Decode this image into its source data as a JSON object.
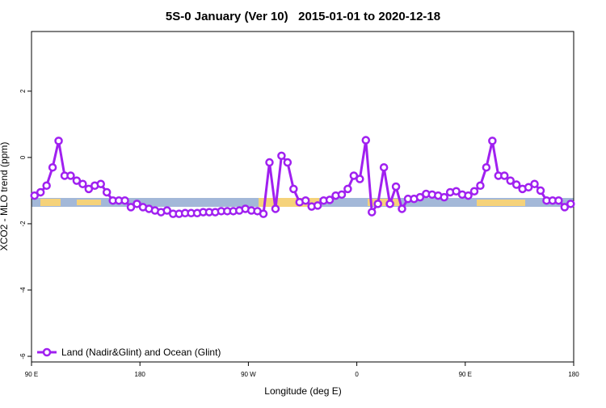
{
  "chart_data": {
    "type": "line",
    "title": "5S-0 January (Ver 10)   2015-01-01 to 2020-12-18",
    "xlabel": "Longitude (deg E)",
    "ylabel": "XCO2 - MLO trend (ppm)",
    "xlim": [
      90,
      540
    ],
    "ylim": [
      -6.17,
      3.8
    ],
    "xticks": [
      {
        "value": 90,
        "label": "90 E"
      },
      180,
      {
        "value": 270,
        "label": "90 W"
      },
      {
        "value": 360,
        "label": "0"
      },
      {
        "value": 450,
        "label": "90 E"
      },
      {
        "value": 540,
        "label": "180"
      }
    ],
    "yticks": [
      2,
      0,
      -2,
      -4,
      -6
    ],
    "legend": "bottom-left",
    "x": [
      92.5,
      97.5,
      102.5,
      107.5,
      112.5,
      117.5,
      122.5,
      127.5,
      132.5,
      137.5,
      142.5,
      147.5,
      152.5,
      157.5,
      162.5,
      167.5,
      172.5,
      177.5,
      182.5,
      187.5,
      192.5,
      197.5,
      202.5,
      207.5,
      212.5,
      217.5,
      222.5,
      227.5,
      232.5,
      237.5,
      242.5,
      247.5,
      252.5,
      257.5,
      262.5,
      267.5,
      272.5,
      277.5,
      282.5,
      287.5,
      292.5,
      297.5,
      302.5,
      307.5,
      312.5,
      317.5,
      322.5,
      327.5,
      332.5,
      337.5,
      342.5,
      347.5,
      352.5,
      357.5,
      362.5,
      367.5,
      372.5,
      377.5,
      382.5,
      387.5,
      392.5,
      397.5,
      402.5,
      407.5,
      412.5,
      417.5,
      422.5,
      427.5,
      432.5,
      437.5,
      442.5,
      447.5,
      452.5,
      457.5,
      462.5,
      467.5,
      472.5,
      477.5,
      482.5,
      487.5,
      492.5,
      497.5,
      502.5,
      507.5,
      512.5,
      517.5,
      522.5,
      527.5,
      532.5,
      537.5
    ],
    "series": [
      {
        "name": "Land (Nadir&Glint) and Ocean (Glint)",
        "color": "#a020f0",
        "values": [
          -1.15,
          -1.05,
          -0.85,
          -0.3,
          0.5,
          -0.55,
          -0.55,
          -0.7,
          -0.8,
          -0.95,
          -0.85,
          -0.8,
          -1.05,
          -1.3,
          -1.3,
          -1.3,
          -1.5,
          -1.4,
          -1.5,
          -1.55,
          -1.6,
          -1.65,
          -1.6,
          -1.7,
          -1.7,
          -1.68,
          -1.68,
          -1.68,
          -1.65,
          -1.65,
          -1.65,
          -1.62,
          -1.62,
          -1.62,
          -1.6,
          -1.55,
          -1.6,
          -1.62,
          -1.7,
          -0.15,
          -1.55,
          0.05,
          -0.15,
          -0.95,
          -1.35,
          -1.3,
          -1.48,
          -1.45,
          -1.3,
          -1.28,
          -1.15,
          -1.12,
          -0.95,
          -0.55,
          -0.65,
          0.52,
          -1.65,
          -1.4,
          -0.3,
          -1.4,
          -0.88,
          -1.55,
          -1.25,
          -1.25,
          -1.2,
          -1.1,
          -1.12,
          -1.15,
          -1.2,
          -1.05,
          -1.02,
          -1.12,
          -1.15,
          -1.02,
          -0.85,
          -0.3,
          0.5,
          -0.55,
          -0.55,
          -0.7,
          -0.82,
          -0.95,
          -0.9,
          -0.8,
          -1.0,
          -1.3,
          -1.3,
          -1.3,
          -1.5,
          -1.4
        ]
      }
    ]
  }
}
